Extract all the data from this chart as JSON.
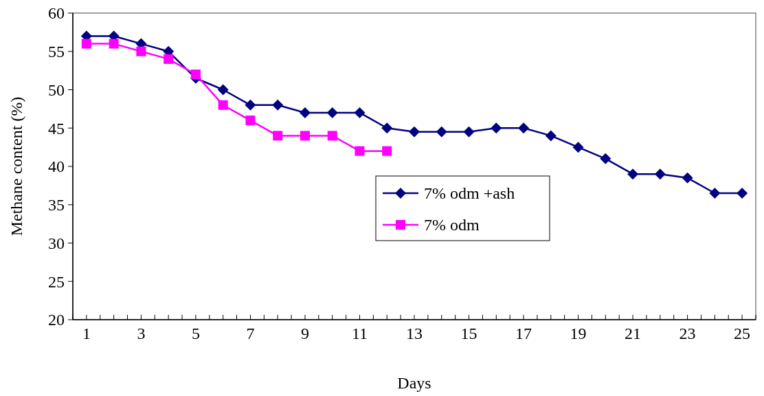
{
  "chart_data": {
    "type": "line",
    "xlabel": "Days",
    "ylabel": "Methane content (%)",
    "x": [
      1,
      2,
      3,
      4,
      5,
      6,
      7,
      8,
      9,
      10,
      11,
      12,
      13,
      14,
      15,
      16,
      17,
      18,
      19,
      20,
      21,
      22,
      23,
      24,
      25
    ],
    "series": [
      {
        "name": "7% odm +ash",
        "color": "#000080",
        "marker": "diamond",
        "values": [
          57,
          57,
          56,
          55,
          51.5,
          50,
          48,
          48,
          47,
          47,
          47,
          45,
          44.5,
          44.5,
          44.5,
          45,
          45,
          44,
          42.5,
          41,
          39,
          39,
          38.5,
          36.5,
          36.5
        ]
      },
      {
        "name": "7% odm",
        "color": "#ff00ff",
        "marker": "square",
        "x": [
          1,
          2,
          3,
          4,
          5,
          6,
          7,
          8,
          9,
          10,
          11,
          12
        ],
        "values": [
          56,
          56,
          55,
          54,
          52,
          48,
          46,
          44,
          44,
          44,
          42,
          42
        ]
      }
    ],
    "xlim": [
      0.5,
      25.5
    ],
    "xticks": [
      {
        "value": 0.5,
        "label": null
      },
      1,
      {
        "value": 1.5,
        "label": null
      },
      {
        "value": 2,
        "label": null
      },
      {
        "value": 2.5,
        "label": null
      },
      3,
      {
        "value": 3.5,
        "label": null
      },
      {
        "value": 4,
        "label": null
      },
      {
        "value": 4.5,
        "label": null
      },
      5,
      {
        "value": 5.5,
        "label": null
      },
      {
        "value": 6,
        "label": null
      },
      {
        "value": 6.5,
        "label": null
      },
      7,
      {
        "value": 7.5,
        "label": null
      },
      {
        "value": 8,
        "label": null
      },
      {
        "value": 8.5,
        "label": null
      },
      9,
      {
        "value": 9.5,
        "label": null
      },
      {
        "value": 10,
        "label": null
      },
      {
        "value": 10.5,
        "label": null
      },
      11,
      {
        "value": 11.5,
        "label": null
      },
      {
        "value": 12,
        "label": null
      },
      {
        "value": 12.5,
        "label": null
      },
      13,
      {
        "value": 13.5,
        "label": null
      },
      {
        "value": 14,
        "label": null
      },
      {
        "value": 14.5,
        "label": null
      },
      15,
      {
        "value": 15.5,
        "label": null
      },
      {
        "value": 16,
        "label": null
      },
      {
        "value": 16.5,
        "label": null
      },
      17,
      {
        "value": 17.5,
        "label": null
      },
      {
        "value": 18,
        "label": null
      },
      {
        "value": 18.5,
        "label": null
      },
      19,
      {
        "value": 19.5,
        "label": null
      },
      {
        "value": 20,
        "label": null
      },
      {
        "value": 20.5,
        "label": null
      },
      21,
      {
        "value": 21.5,
        "label": null
      },
      {
        "value": 22,
        "label": null
      },
      {
        "value": 22.5,
        "label": null
      },
      23,
      {
        "value": 23.5,
        "label": null
      },
      {
        "value": 24,
        "label": null
      },
      {
        "value": 24.5,
        "label": null
      },
      25,
      {
        "value": 25.5,
        "label": null
      }
    ],
    "ylim": [
      20,
      60
    ],
    "yticks": [
      20,
      25,
      30,
      35,
      40,
      45,
      50,
      55,
      60
    ],
    "grid": false,
    "legend": "center"
  }
}
